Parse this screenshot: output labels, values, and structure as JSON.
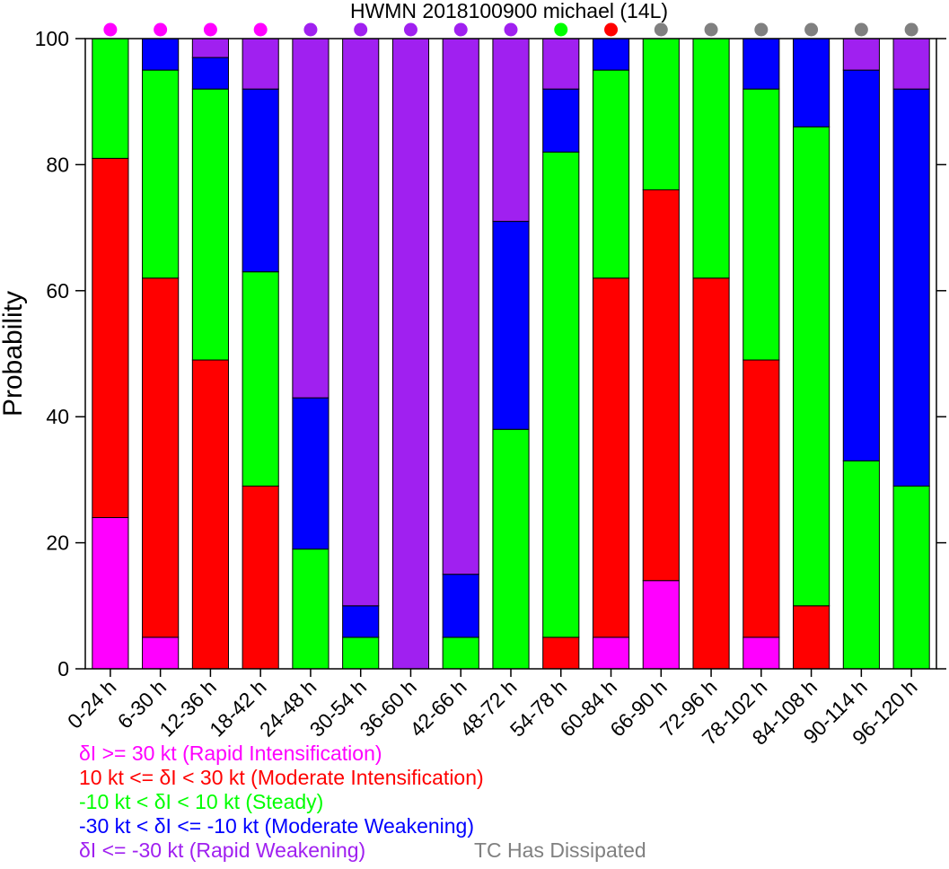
{
  "chart_data": {
    "type": "bar",
    "stacked": true,
    "title": "HWMN 2018100900 michael (14L)",
    "xlabel": "",
    "ylabel": "Probability",
    "ylim": [
      0,
      100
    ],
    "yticks": [
      0,
      20,
      40,
      60,
      80,
      100
    ],
    "categories": [
      "0-24 h",
      "6-30 h",
      "12-36 h",
      "18-42 h",
      "24-48 h",
      "30-54 h",
      "36-60 h",
      "42-66 h",
      "48-72 h",
      "54-78 h",
      "60-84 h",
      "66-90 h",
      "72-96 h",
      "78-102 h",
      "84-108 h",
      "90-114 h",
      "96-120 h"
    ],
    "series": [
      {
        "key": "ri",
        "color": "#ff00ff",
        "values": [
          24,
          5,
          0,
          0,
          0,
          0,
          0,
          0,
          0,
          0,
          5,
          14,
          0,
          5,
          0,
          0,
          0
        ]
      },
      {
        "key": "mi",
        "color": "#ff0000",
        "values": [
          57,
          57,
          49,
          29,
          0,
          0,
          0,
          0,
          0,
          5,
          57,
          62,
          62,
          44,
          10,
          0,
          0
        ]
      },
      {
        "key": "st",
        "color": "#00ff00",
        "values": [
          19,
          33,
          43,
          34,
          19,
          5,
          0,
          5,
          38,
          77,
          33,
          24,
          38,
          43,
          76,
          33,
          29
        ]
      },
      {
        "key": "mw",
        "color": "#0000ff",
        "values": [
          0,
          5,
          5,
          29,
          24,
          5,
          0,
          10,
          33,
          10,
          5,
          0,
          0,
          8,
          14,
          62,
          63
        ]
      },
      {
        "key": "rw",
        "color": "#a020f0",
        "values": [
          0,
          0,
          3,
          8,
          57,
          90,
          100,
          85,
          29,
          8,
          0,
          0,
          0,
          0,
          0,
          5,
          8
        ]
      }
    ],
    "indicator_colors": [
      "#ff00ff",
      "#ff00ff",
      "#ff00ff",
      "#ff00ff",
      "#a020f0",
      "#a020f0",
      "#a020f0",
      "#a020f0",
      "#a020f0",
      "#00ff00",
      "#ff0000",
      "#808080",
      "#808080",
      "#808080",
      "#808080",
      "#808080",
      "#808080"
    ],
    "legend_placement": "bottom-left",
    "grid": false
  },
  "legend": {
    "items": [
      {
        "text": "δI >= 30 kt (Rapid Intensification)",
        "color": "#ff00ff"
      },
      {
        "text": "10 kt <= δI < 30 kt (Moderate Intensification)",
        "color": "#ff0000"
      },
      {
        "text": "-10 kt < δI < 10 kt (Steady)",
        "color": "#00ff00"
      },
      {
        "text": "-30 kt < δI <= -10 kt (Moderate Weakening)",
        "color": "#0000ff"
      },
      {
        "text": "δI <= -30 kt (Rapid Weakening)",
        "color": "#a020f0"
      }
    ],
    "dissipated": {
      "text": "TC Has Dissipated",
      "color": "#808080"
    }
  }
}
